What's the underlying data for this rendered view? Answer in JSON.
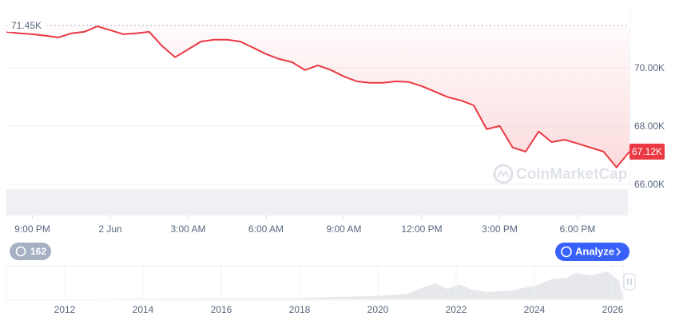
{
  "chart_data": {
    "type": "line",
    "values": [
      71230,
      71180,
      71150,
      71100,
      71040,
      71180,
      71230,
      71420,
      71290,
      71150,
      71180,
      71230,
      70740,
      70360,
      70630,
      70900,
      70960,
      70960,
      70900,
      70690,
      70470,
      70300,
      70190,
      69920,
      70080,
      69920,
      69700,
      69530,
      69480,
      69480,
      69530,
      69510,
      69370,
      69180,
      68990,
      68880,
      68710,
      67890,
      68000,
      67260,
      67120,
      67810,
      67450,
      67530,
      67400,
      67260,
      67120,
      66580,
      67120
    ],
    "value_labels": [
      null,
      null,
      null,
      null,
      null,
      null,
      null,
      null,
      null,
      null,
      null,
      null,
      null,
      null,
      null,
      null,
      null,
      null,
      null,
      null,
      null,
      null,
      null,
      null,
      null,
      null,
      null,
      null,
      null,
      null,
      null,
      null,
      null,
      null,
      null,
      null,
      null,
      null,
      null,
      null,
      null,
      null,
      null,
      null,
      null,
      null,
      null,
      null,
      "67.12K"
    ],
    "color": "#ea3943",
    "xlim": [
      0,
      48
    ],
    "xticks": [
      {
        "value": 2,
        "label": "9:00 PM"
      },
      {
        "value": 8,
        "label": "2 Jun"
      },
      {
        "value": 14,
        "label": "3:00 AM"
      },
      {
        "value": 20,
        "label": "6:00 AM"
      },
      {
        "value": 26,
        "label": "9:00 AM"
      },
      {
        "value": 32,
        "label": "12:00 PM"
      },
      {
        "value": 38,
        "label": "3:00 PM"
      },
      {
        "value": 44,
        "label": "6:00 PM"
      }
    ],
    "ylim": [
      64930,
      72050
    ],
    "yticks": [
      {
        "value": 66000,
        "label": "66.00K"
      },
      {
        "value": 68000,
        "label": "68.00K"
      },
      {
        "value": 70000,
        "label": "70.00K"
      }
    ],
    "reference_line": {
      "value": 71450,
      "label": "71.45K"
    },
    "grid": true
  },
  "ui": {
    "history_badge": "162",
    "analyze_button": "Analyze",
    "watermark": "CoinMarketCap",
    "navigator_years": [
      "2012",
      "2014",
      "2016",
      "2018",
      "2020",
      "2022",
      "2024",
      "2026"
    ]
  }
}
